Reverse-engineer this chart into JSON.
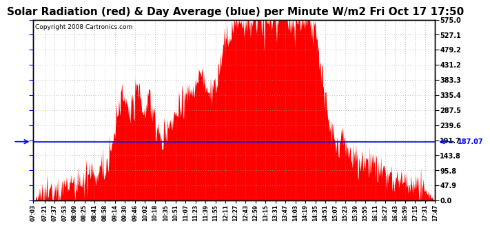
{
  "title": "Solar Radiation (red) & Day Average (blue) per Minute W/m2 Fri Oct 17 17:50",
  "copyright": "Copyright 2008 Cartronics.com",
  "avg_value": 187.07,
  "y_min": 0.0,
  "y_max": 575.0,
  "y_ticks": [
    0.0,
    47.9,
    95.8,
    143.8,
    191.7,
    239.6,
    287.5,
    335.4,
    383.3,
    431.2,
    479.2,
    527.1,
    575.0
  ],
  "fill_color": "#FF0000",
  "line_color": "#0000FF",
  "bg_color": "#FFFFFF",
  "grid_color": "#999999",
  "title_fontsize": 11,
  "copyright_fontsize": 6.5,
  "avg_label": "187.07",
  "x_start_min": 423,
  "x_end_min": 1067,
  "xtick_labels": [
    "07:03",
    "07:21",
    "07:37",
    "07:53",
    "08:09",
    "08:25",
    "08:41",
    "08:58",
    "09:14",
    "09:30",
    "09:46",
    "10:02",
    "10:18",
    "10:35",
    "10:51",
    "11:07",
    "11:23",
    "11:39",
    "11:55",
    "12:11",
    "12:27",
    "12:43",
    "12:59",
    "13:15",
    "13:31",
    "13:47",
    "14:03",
    "14:19",
    "14:35",
    "14:51",
    "15:07",
    "15:23",
    "15:39",
    "15:55",
    "16:11",
    "16:27",
    "16:43",
    "16:59",
    "17:15",
    "17:31",
    "17:47"
  ]
}
